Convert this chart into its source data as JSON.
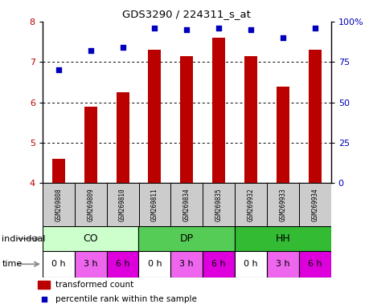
{
  "title": "GDS3290 / 224311_s_at",
  "samples": [
    "GSM269808",
    "GSM269809",
    "GSM269810",
    "GSM269811",
    "GSM269834",
    "GSM269835",
    "GSM269932",
    "GSM269933",
    "GSM269934"
  ],
  "bar_values": [
    4.6,
    5.9,
    6.25,
    7.3,
    7.15,
    7.6,
    7.15,
    6.4,
    7.3
  ],
  "dot_values": [
    70,
    82,
    84,
    96,
    95,
    96,
    95,
    90,
    96
  ],
  "ylim_left": [
    4,
    8
  ],
  "ylim_right": [
    0,
    100
  ],
  "yticks_left": [
    4,
    5,
    6,
    7,
    8
  ],
  "yticks_right": [
    0,
    25,
    50,
    75,
    100
  ],
  "ytick_labels_right": [
    "0",
    "25",
    "50",
    "75",
    "100%"
  ],
  "bar_color": "#bb0000",
  "dot_color": "#0000bb",
  "individual_groups": [
    {
      "label": "CO",
      "start": 0,
      "end": 3,
      "color": "#ccffcc"
    },
    {
      "label": "DP",
      "start": 3,
      "end": 6,
      "color": "#55cc55"
    },
    {
      "label": "HH",
      "start": 6,
      "end": 9,
      "color": "#33bb33"
    }
  ],
  "time_labels": [
    "0 h",
    "3 h",
    "6 h",
    "0 h",
    "3 h",
    "6 h",
    "0 h",
    "3 h",
    "6 h"
  ],
  "time_colors": [
    "#ffffff",
    "#ee66ee",
    "#dd00dd",
    "#ffffff",
    "#ee66ee",
    "#dd00dd",
    "#ffffff",
    "#ee66ee",
    "#dd00dd"
  ],
  "legend_bar_label": "transformed count",
  "legend_dot_label": "percentile rank within the sample",
  "label_individual": "individual",
  "label_time": "time",
  "background_color": "#ffffff",
  "gsm_bg_color": "#cccccc",
  "n_samples": 9,
  "bar_width": 0.4
}
